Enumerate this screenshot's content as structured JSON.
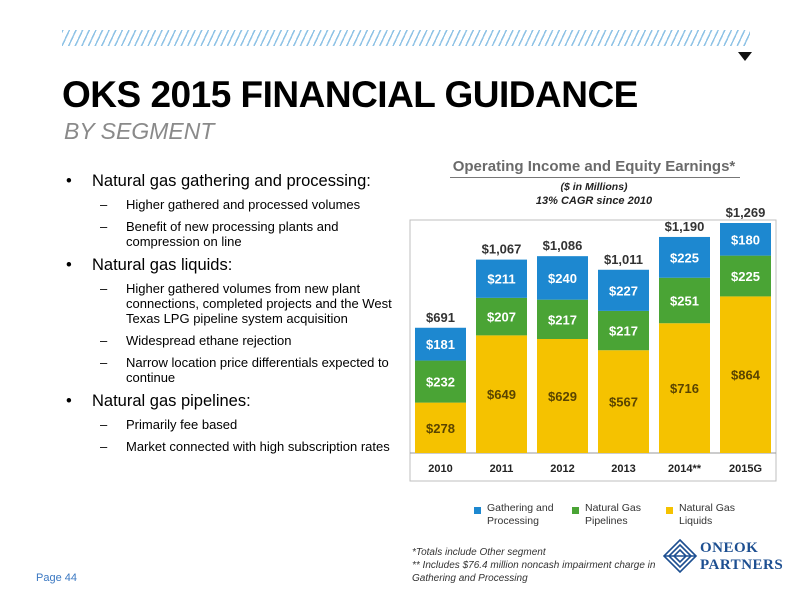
{
  "page": {
    "title": "OKS 2015 FINANCIAL GUIDANCE",
    "subtitle": "BY SEGMENT",
    "page_label": "Page 44"
  },
  "bullets": [
    {
      "text": "Natural gas gathering and processing:",
      "subs": [
        "Higher gathered and processed volumes",
        "Benefit of new processing plants and compression on line"
      ]
    },
    {
      "text": "Natural gas liquids:",
      "subs": [
        "Higher gathered volumes from new plant connections, completed projects and the West Texas LPG pipeline system acquisition",
        "Widespread ethane rejection",
        "Narrow location price differentials expected to continue"
      ]
    },
    {
      "text": "Natural gas pipelines:",
      "subs": [
        "Primarily fee based",
        "Market connected with high subscription rates"
      ]
    }
  ],
  "chart_data": {
    "type": "bar",
    "stacked": true,
    "title": "Operating Income and Equity Earnings*",
    "unit_note": "($ in Millions)",
    "subtitle": "13% CAGR since 2010",
    "categories": [
      "2010",
      "2011",
      "2012",
      "2013",
      "2014**",
      "2015G"
    ],
    "series": [
      {
        "name": "Natural Gas Liquids",
        "color": "#f5c200",
        "values": [
          278,
          649,
          629,
          567,
          716,
          864
        ],
        "labels": [
          "$278",
          "$649",
          "$629",
          "$567",
          "$716",
          "$864"
        ]
      },
      {
        "name": "Natural Gas Pipelines",
        "color": "#4aa435",
        "values": [
          232,
          207,
          217,
          217,
          251,
          225
        ],
        "labels": [
          "$232",
          "$207",
          "$217",
          "$217",
          "$251",
          "$225"
        ]
      },
      {
        "name": "Gathering and Processing",
        "color": "#1d88d0",
        "values": [
          181,
          211,
          240,
          227,
          225,
          180
        ],
        "labels": [
          "$181",
          "$211",
          "$240",
          "$227",
          "$225",
          "$180"
        ]
      }
    ],
    "totals": [
      691,
      1067,
      1086,
      1011,
      1190,
      1269
    ],
    "total_labels": [
      "$691",
      "$1,067",
      "$1,086",
      "$1,011",
      "$1,190",
      "$1,269"
    ],
    "legend": [
      {
        "name": "Gathering and Processing",
        "color": "#1d88d0"
      },
      {
        "name": "Natural Gas Pipelines",
        "color": "#4aa435"
      },
      {
        "name": "Natural Gas Liquids",
        "color": "#f5c200"
      }
    ],
    "ylim": [
      0,
      1300
    ]
  },
  "footnotes": [
    "*Totals include Other segment",
    "** Includes $76.4 million noncash impairment charge in",
    "Gathering and Processing"
  ],
  "logo": {
    "line1": "ONEOK",
    "line2": "PARTNERS"
  }
}
